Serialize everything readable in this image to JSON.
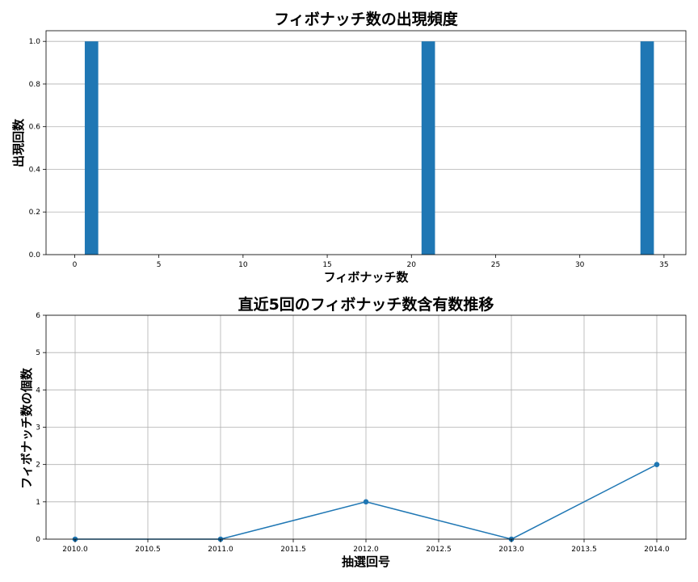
{
  "chart_data": [
    {
      "type": "bar",
      "title": "フィボナッチ数の出現頻度",
      "xlabel": "フィボナッチ数",
      "ylabel": "出現回数",
      "x": [
        1,
        21,
        34
      ],
      "values": [
        1,
        1,
        1
      ],
      "xlim": [
        -1.7,
        36.3
      ],
      "ylim": [
        0,
        1.05
      ],
      "xticks": [
        0,
        5,
        10,
        15,
        20,
        25,
        30,
        35
      ],
      "xtick_labels": [
        "0",
        "5",
        "10",
        "15",
        "20",
        "25",
        "30",
        "35"
      ],
      "yticks": [
        0,
        0.2,
        0.4,
        0.6,
        0.8,
        1.0
      ],
      "ytick_labels": [
        "0.0",
        "0.2",
        "0.4",
        "0.6",
        "0.8",
        "1.0"
      ],
      "grid": "y",
      "bar_color": "#1f77b4"
    },
    {
      "type": "line",
      "title": "直近5回のフィボナッチ数含有数推移",
      "xlabel": "抽選回号",
      "ylabel": "フィボナッチ数の個数",
      "x": [
        2010,
        2011,
        2012,
        2013,
        2014
      ],
      "values": [
        0,
        0,
        1,
        0,
        2
      ],
      "xlim": [
        2009.8,
        2014.2
      ],
      "ylim": [
        0,
        6
      ],
      "xticks": [
        2010,
        2010.5,
        2011,
        2011.5,
        2012,
        2012.5,
        2013,
        2013.5,
        2014
      ],
      "xtick_labels": [
        "2010.0",
        "2010.5",
        "2011.0",
        "2011.5",
        "2012.0",
        "2012.5",
        "2013.0",
        "2013.5",
        "2014.0"
      ],
      "yticks": [
        0,
        1,
        2,
        3,
        4,
        5,
        6
      ],
      "ytick_labels": [
        "0",
        "1",
        "2",
        "3",
        "4",
        "5",
        "6"
      ],
      "grid": "both",
      "marker": "o",
      "line_color": "#1f77b4"
    }
  ]
}
